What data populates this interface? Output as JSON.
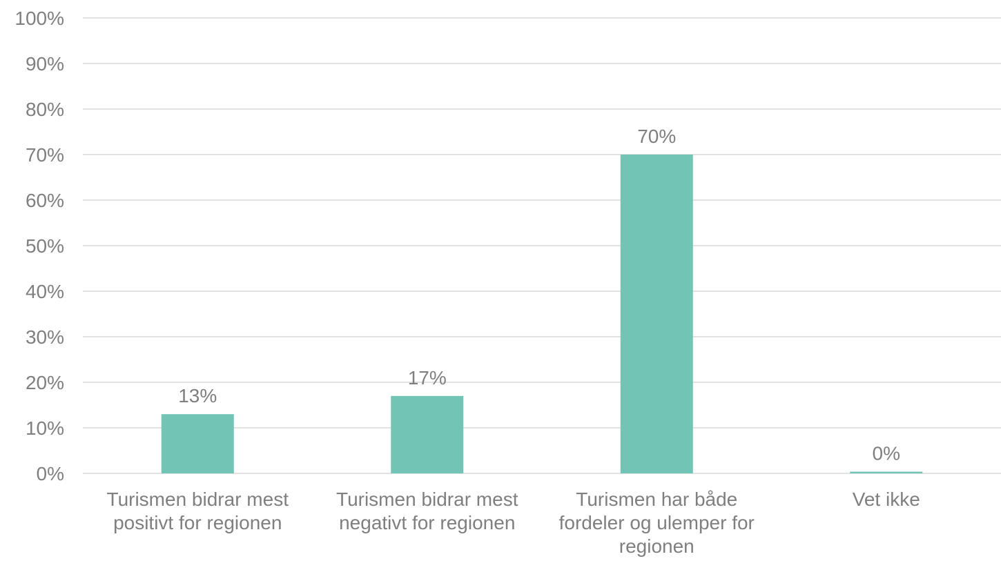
{
  "chart_data": {
    "type": "bar",
    "title": "",
    "xlabel": "",
    "ylabel": "",
    "categories": [
      [
        "Turismen bidrar mest",
        "positivt for regionen"
      ],
      [
        "Turismen bidrar mest",
        "negativt for regionen"
      ],
      [
        "Turismen har både",
        "fordeler og ulemper for",
        "regionen"
      ],
      [
        "Vet ikke"
      ]
    ],
    "values": [
      13,
      17,
      70,
      0
    ],
    "data_labels": [
      "13%",
      "17%",
      "70%",
      "0%"
    ],
    "ylim": [
      0,
      100
    ],
    "yticks": [
      0,
      10,
      20,
      30,
      40,
      50,
      60,
      70,
      80,
      90,
      100
    ],
    "ytick_labels": [
      "0%",
      "10%",
      "20%",
      "30%",
      "40%",
      "50%",
      "60%",
      "70%",
      "80%",
      "90%",
      "100%"
    ],
    "grid": true,
    "legend": "none",
    "bar_color": "#72c4b4",
    "grid_color": "#d9d9d9",
    "text_color": "#7f7f7f"
  }
}
